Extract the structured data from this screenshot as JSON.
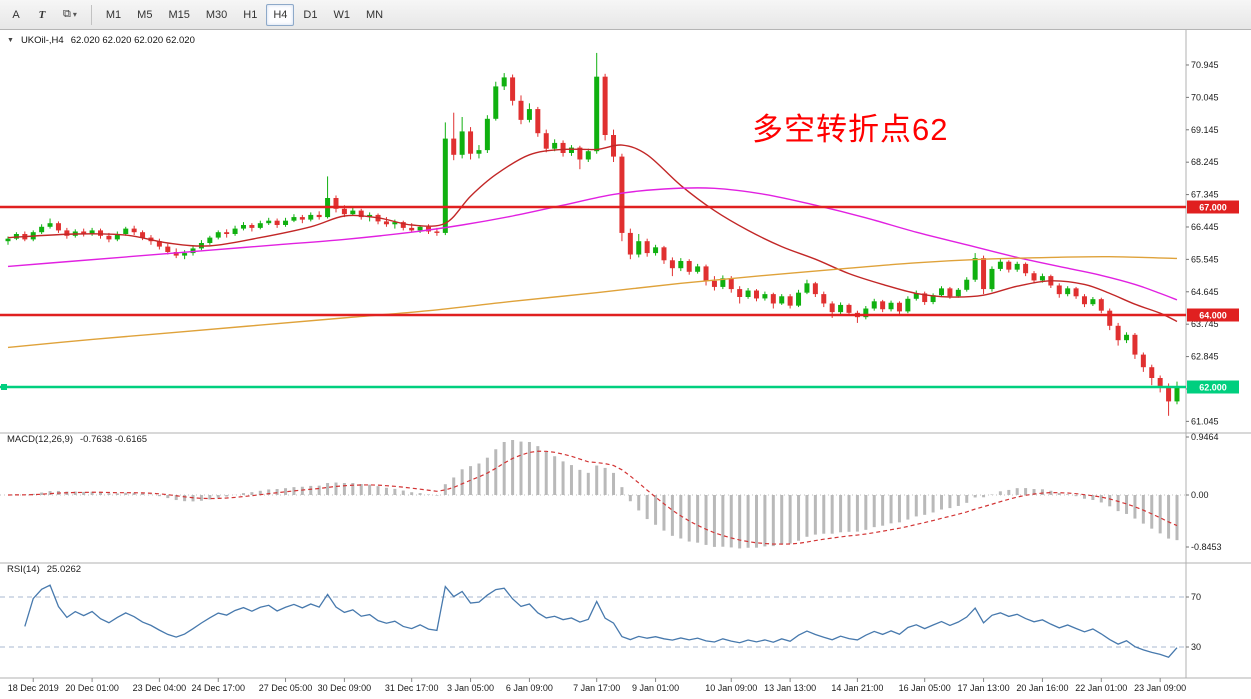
{
  "toolbar": {
    "tool_buttons": [
      "A",
      "T"
    ],
    "layers_button": {
      "icon": "⧉",
      "caret": "▾"
    },
    "timeframes": [
      "M1",
      "M5",
      "M15",
      "M30",
      "H1",
      "H4",
      "D1",
      "W1",
      "MN"
    ],
    "active_timeframe": "H4"
  },
  "chart": {
    "collapse_icon": "▼",
    "title": "UKOil-,H4",
    "ohlc": "62.020 62.020 62.020 62.020",
    "annotation": {
      "text": "多空转折点62",
      "color": "#ff0000"
    },
    "price_axis_labels": [
      "70.945",
      "70.045",
      "69.145",
      "68.245",
      "67.345",
      "66.445",
      "65.545",
      "64.645",
      "63.745",
      "62.845",
      "61.945",
      "61.045"
    ],
    "colors": {
      "up": "#10b010",
      "down": "#e03030",
      "ma_red": "#c22727",
      "ma_magenta": "#e121e1",
      "ma_orange": "#dfa23a",
      "macd_hist": "#b9b9b9",
      "macd_signal": "#d23434",
      "rsi_line": "#4779ad",
      "rsi_levels": "#a8b8d0",
      "axis_line": "#b0b0b0"
    }
  },
  "chart_data": {
    "type": "candlestick",
    "symbol": "UKOil-",
    "timeframe": "H4",
    "candles": [
      [
        66.05,
        66.18,
        65.95,
        66.12
      ],
      [
        66.12,
        66.3,
        66.08,
        66.25
      ],
      [
        66.25,
        66.32,
        66.05,
        66.1
      ],
      [
        66.1,
        66.35,
        66.05,
        66.3
      ],
      [
        66.3,
        66.52,
        66.25,
        66.45
      ],
      [
        66.45,
        66.68,
        66.4,
        66.55
      ],
      [
        66.55,
        66.6,
        66.28,
        66.35
      ],
      [
        66.35,
        66.42,
        66.12,
        66.2
      ],
      [
        66.2,
        66.38,
        66.15,
        66.32
      ],
      [
        66.32,
        66.4,
        66.18,
        66.25
      ],
      [
        66.25,
        66.42,
        66.2,
        66.35
      ],
      [
        66.35,
        66.4,
        66.12,
        66.2
      ],
      [
        66.2,
        66.28,
        66.02,
        66.1
      ],
      [
        66.1,
        66.32,
        66.05,
        66.25
      ],
      [
        66.25,
        66.45,
        66.2,
        66.4
      ],
      [
        66.4,
        66.48,
        66.22,
        66.3
      ],
      [
        66.3,
        66.35,
        66.08,
        66.15
      ],
      [
        66.15,
        66.22,
        65.95,
        66.05
      ],
      [
        66.05,
        66.12,
        65.82,
        65.9
      ],
      [
        65.9,
        65.98,
        65.68,
        65.75
      ],
      [
        65.75,
        65.85,
        65.58,
        65.65
      ],
      [
        65.65,
        65.8,
        65.55,
        65.72
      ],
      [
        65.72,
        65.92,
        65.65,
        65.85
      ],
      [
        65.85,
        66.08,
        65.8,
        66.0
      ],
      [
        66.0,
        66.2,
        65.95,
        66.15
      ],
      [
        66.15,
        66.35,
        66.1,
        66.3
      ],
      [
        66.3,
        66.38,
        66.15,
        66.25
      ],
      [
        66.25,
        66.48,
        66.2,
        66.4
      ],
      [
        66.4,
        66.58,
        66.35,
        66.5
      ],
      [
        66.5,
        66.55,
        66.32,
        66.42
      ],
      [
        66.42,
        66.62,
        66.38,
        66.55
      ],
      [
        66.55,
        66.7,
        66.5,
        66.62
      ],
      [
        66.62,
        66.68,
        66.42,
        66.5
      ],
      [
        66.5,
        66.7,
        66.45,
        66.62
      ],
      [
        66.62,
        66.8,
        66.58,
        66.72
      ],
      [
        66.72,
        66.78,
        66.55,
        66.65
      ],
      [
        66.65,
        66.85,
        66.6,
        66.78
      ],
      [
        66.78,
        66.88,
        66.65,
        66.72
      ],
      [
        66.72,
        67.85,
        66.68,
        67.25
      ],
      [
        67.25,
        67.32,
        66.85,
        66.95
      ],
      [
        66.95,
        67.05,
        66.72,
        66.8
      ],
      [
        66.8,
        66.98,
        66.75,
        66.9
      ],
      [
        66.9,
        66.95,
        66.65,
        66.72
      ],
      [
        66.72,
        66.85,
        66.6,
        66.78
      ],
      [
        66.78,
        66.82,
        66.52,
        66.6
      ],
      [
        66.6,
        66.72,
        66.45,
        66.52
      ],
      [
        66.52,
        66.65,
        66.4,
        66.58
      ],
      [
        66.58,
        66.62,
        66.35,
        66.42
      ],
      [
        66.42,
        66.55,
        66.3,
        66.35
      ],
      [
        66.35,
        66.5,
        66.28,
        66.45
      ],
      [
        66.45,
        66.52,
        66.25,
        66.32
      ],
      [
        66.32,
        66.42,
        66.2,
        66.28
      ],
      [
        66.28,
        69.35,
        66.22,
        68.9
      ],
      [
        68.9,
        69.62,
        68.3,
        68.45
      ],
      [
        68.45,
        69.5,
        68.35,
        69.1
      ],
      [
        69.1,
        69.22,
        68.32,
        68.48
      ],
      [
        68.48,
        68.72,
        68.35,
        68.58
      ],
      [
        68.58,
        69.55,
        68.5,
        69.45
      ],
      [
        69.45,
        70.48,
        69.4,
        70.35
      ],
      [
        70.35,
        70.72,
        70.25,
        70.6
      ],
      [
        70.6,
        70.68,
        69.82,
        69.95
      ],
      [
        69.95,
        70.1,
        69.3,
        69.42
      ],
      [
        69.42,
        69.88,
        69.35,
        69.72
      ],
      [
        69.72,
        69.78,
        68.95,
        69.05
      ],
      [
        69.05,
        69.15,
        68.52,
        68.62
      ],
      [
        68.62,
        68.88,
        68.55,
        68.78
      ],
      [
        68.78,
        68.85,
        68.4,
        68.5
      ],
      [
        68.5,
        68.72,
        68.42,
        68.65
      ],
      [
        68.65,
        68.7,
        68.05,
        68.32
      ],
      [
        68.32,
        68.62,
        68.25,
        68.55
      ],
      [
        68.55,
        71.28,
        68.48,
        70.62
      ],
      [
        70.62,
        70.7,
        68.85,
        69.0
      ],
      [
        69.0,
        69.15,
        68.25,
        68.4
      ],
      [
        68.4,
        68.48,
        66.05,
        66.28
      ],
      [
        66.28,
        66.4,
        65.55,
        65.68
      ],
      [
        65.68,
        66.25,
        65.6,
        66.05
      ],
      [
        66.05,
        66.12,
        65.62,
        65.72
      ],
      [
        65.72,
        65.95,
        65.65,
        65.88
      ],
      [
        65.88,
        65.92,
        65.42,
        65.52
      ],
      [
        65.52,
        65.6,
        65.08,
        65.3
      ],
      [
        65.3,
        65.58,
        65.22,
        65.5
      ],
      [
        65.5,
        65.55,
        65.12,
        65.2
      ],
      [
        65.2,
        65.42,
        65.15,
        65.35
      ],
      [
        65.35,
        65.4,
        64.82,
        64.95
      ],
      [
        64.95,
        65.08,
        64.68,
        64.78
      ],
      [
        64.78,
        65.1,
        64.72,
        65.02
      ],
      [
        65.02,
        65.08,
        64.62,
        64.72
      ],
      [
        64.72,
        64.8,
        64.32,
        64.5
      ],
      [
        64.5,
        64.75,
        64.45,
        64.68
      ],
      [
        64.68,
        64.72,
        64.38,
        64.46
      ],
      [
        64.46,
        64.65,
        64.4,
        64.58
      ],
      [
        64.58,
        64.62,
        64.18,
        64.32
      ],
      [
        64.32,
        64.58,
        64.28,
        64.52
      ],
      [
        64.52,
        64.58,
        64.18,
        64.26
      ],
      [
        64.26,
        64.7,
        64.22,
        64.62
      ],
      [
        64.62,
        64.98,
        64.58,
        64.88
      ],
      [
        64.88,
        64.92,
        64.5,
        64.58
      ],
      [
        64.58,
        64.65,
        64.22,
        64.32
      ],
      [
        64.32,
        64.38,
        63.92,
        64.08
      ],
      [
        64.08,
        64.35,
        64.02,
        64.28
      ],
      [
        64.28,
        64.32,
        63.98,
        64.06
      ],
      [
        64.06,
        64.12,
        63.78,
        63.94
      ],
      [
        63.94,
        64.25,
        63.88,
        64.18
      ],
      [
        64.18,
        64.45,
        64.12,
        64.38
      ],
      [
        64.38,
        64.42,
        64.08,
        64.16
      ],
      [
        64.16,
        64.4,
        64.1,
        64.34
      ],
      [
        64.34,
        64.38,
        64.02,
        64.1
      ],
      [
        64.1,
        64.52,
        64.05,
        64.45
      ],
      [
        64.45,
        64.68,
        64.4,
        64.6
      ],
      [
        64.6,
        64.65,
        64.28,
        64.36
      ],
      [
        64.36,
        64.6,
        64.3,
        64.55
      ],
      [
        64.55,
        64.8,
        64.5,
        64.74
      ],
      [
        64.74,
        64.78,
        64.45,
        64.52
      ],
      [
        64.52,
        64.75,
        64.48,
        64.7
      ],
      [
        64.7,
        65.05,
        64.65,
        64.98
      ],
      [
        64.98,
        65.72,
        64.92,
        65.58
      ],
      [
        65.58,
        65.65,
        64.58,
        64.72
      ],
      [
        64.72,
        65.35,
        64.65,
        65.28
      ],
      [
        65.28,
        65.55,
        65.22,
        65.48
      ],
      [
        65.48,
        65.52,
        65.18,
        65.26
      ],
      [
        65.26,
        65.48,
        65.2,
        65.42
      ],
      [
        65.42,
        65.46,
        65.08,
        65.16
      ],
      [
        65.16,
        65.22,
        64.88,
        64.96
      ],
      [
        64.96,
        65.15,
        64.9,
        65.08
      ],
      [
        65.08,
        65.12,
        64.75,
        64.82
      ],
      [
        64.82,
        64.88,
        64.48,
        64.58
      ],
      [
        64.58,
        64.8,
        64.52,
        64.74
      ],
      [
        64.74,
        64.78,
        64.45,
        64.52
      ],
      [
        64.52,
        64.58,
        64.22,
        64.3
      ],
      [
        64.3,
        64.5,
        64.25,
        64.44
      ],
      [
        64.44,
        64.48,
        64.05,
        64.12
      ],
      [
        64.12,
        64.18,
        63.58,
        63.7
      ],
      [
        63.7,
        63.78,
        63.15,
        63.3
      ],
      [
        63.3,
        63.52,
        63.22,
        63.45
      ],
      [
        63.45,
        63.5,
        62.78,
        62.9
      ],
      [
        62.9,
        62.96,
        62.42,
        62.55
      ],
      [
        62.55,
        62.62,
        62.05,
        62.25
      ],
      [
        62.25,
        62.32,
        61.85,
        62.0
      ],
      [
        62.0,
        62.1,
        61.2,
        61.6
      ],
      [
        61.6,
        62.15,
        61.52,
        62.02
      ]
    ],
    "hlines": [
      {
        "price": 67.0,
        "label": "67.000",
        "color": "#e02020"
      },
      {
        "price": 64.0,
        "label": "64.000",
        "color": "#e02020"
      },
      {
        "price": 62.0,
        "label": "62.000",
        "color": "#00cf7f",
        "anchor": true
      }
    ],
    "ma_overlays": [
      {
        "name": "ma-red",
        "color": "#c22727",
        "points": [
          [
            0,
            66.15
          ],
          [
            8,
            66.25
          ],
          [
            14,
            66.22
          ],
          [
            19,
            66.0
          ],
          [
            24,
            65.92
          ],
          [
            30,
            66.15
          ],
          [
            36,
            66.45
          ],
          [
            40,
            66.75
          ],
          [
            44,
            66.7
          ],
          [
            48,
            66.5
          ],
          [
            52,
            66.55
          ],
          [
            55,
            67.3
          ],
          [
            58,
            67.9
          ],
          [
            62,
            68.45
          ],
          [
            66,
            68.6
          ],
          [
            70,
            68.6
          ],
          [
            73,
            68.72
          ],
          [
            76,
            68.45
          ],
          [
            80,
            67.6
          ],
          [
            84,
            66.9
          ],
          [
            88,
            66.35
          ],
          [
            92,
            65.9
          ],
          [
            96,
            65.55
          ],
          [
            100,
            65.15
          ],
          [
            104,
            64.85
          ],
          [
            108,
            64.6
          ],
          [
            112,
            64.5
          ],
          [
            116,
            64.55
          ],
          [
            120,
            64.8
          ],
          [
            124,
            64.95
          ],
          [
            128,
            64.85
          ],
          [
            131,
            64.6
          ],
          [
            134,
            64.3
          ],
          [
            137,
            64.05
          ],
          [
            139,
            63.82
          ]
        ]
      },
      {
        "name": "ma-magenta",
        "color": "#e121e1",
        "points": [
          [
            0,
            65.35
          ],
          [
            8,
            65.5
          ],
          [
            16,
            65.65
          ],
          [
            24,
            65.8
          ],
          [
            32,
            65.95
          ],
          [
            40,
            66.1
          ],
          [
            48,
            66.3
          ],
          [
            54,
            66.5
          ],
          [
            60,
            66.75
          ],
          [
            66,
            67.05
          ],
          [
            72,
            67.35
          ],
          [
            78,
            67.5
          ],
          [
            84,
            67.52
          ],
          [
            90,
            67.35
          ],
          [
            96,
            67.05
          ],
          [
            102,
            66.7
          ],
          [
            108,
            66.3
          ],
          [
            114,
            65.95
          ],
          [
            120,
            65.6
          ],
          [
            126,
            65.3
          ],
          [
            130,
            65.1
          ],
          [
            134,
            64.85
          ],
          [
            137,
            64.6
          ],
          [
            139,
            64.42
          ]
        ]
      },
      {
        "name": "ma-orange",
        "color": "#dfa23a",
        "points": [
          [
            0,
            63.1
          ],
          [
            10,
            63.32
          ],
          [
            20,
            63.52
          ],
          [
            30,
            63.72
          ],
          [
            40,
            63.92
          ],
          [
            50,
            64.12
          ],
          [
            60,
            64.38
          ],
          [
            70,
            64.62
          ],
          [
            80,
            64.88
          ],
          [
            90,
            65.1
          ],
          [
            100,
            65.3
          ],
          [
            108,
            65.45
          ],
          [
            116,
            65.55
          ],
          [
            124,
            65.6
          ],
          [
            131,
            65.62
          ],
          [
            139,
            65.57
          ]
        ]
      }
    ],
    "macd": {
      "label": "MACD(12,26,9)",
      "value_text": "-0.7638 -0.6165",
      "params": [
        12,
        26,
        9
      ],
      "axis_labels": [
        "0.9464",
        "0.00",
        "-0.8453"
      ]
    },
    "rsi": {
      "label": "RSI(14)",
      "value_text": "25.0262",
      "period": 14,
      "levels": [
        70,
        30
      ]
    },
    "time_axis": {
      "labels": [
        "18 Dec 2019",
        "20 Dec 01:00",
        "23 Dec 04:00",
        "24 Dec 17:00",
        "27 Dec 05:00",
        "30 Dec 09:00",
        "31 Dec 17:00",
        "3 Jan 05:00",
        "6 Jan 09:00",
        "7 Jan 17:00",
        "9 Jan 01:00",
        "10 Jan 09:00",
        "13 Jan 13:00",
        "14 Jan 21:00",
        "16 Jan 05:00",
        "17 Jan 13:00",
        "20 Jan 16:00",
        "22 Jan 01:00",
        "23 Jan 09:00"
      ],
      "indices": [
        3,
        10,
        18,
        25,
        33,
        40,
        48,
        55,
        62,
        70,
        77,
        86,
        93,
        101,
        109,
        116,
        123,
        130,
        137
      ]
    }
  }
}
